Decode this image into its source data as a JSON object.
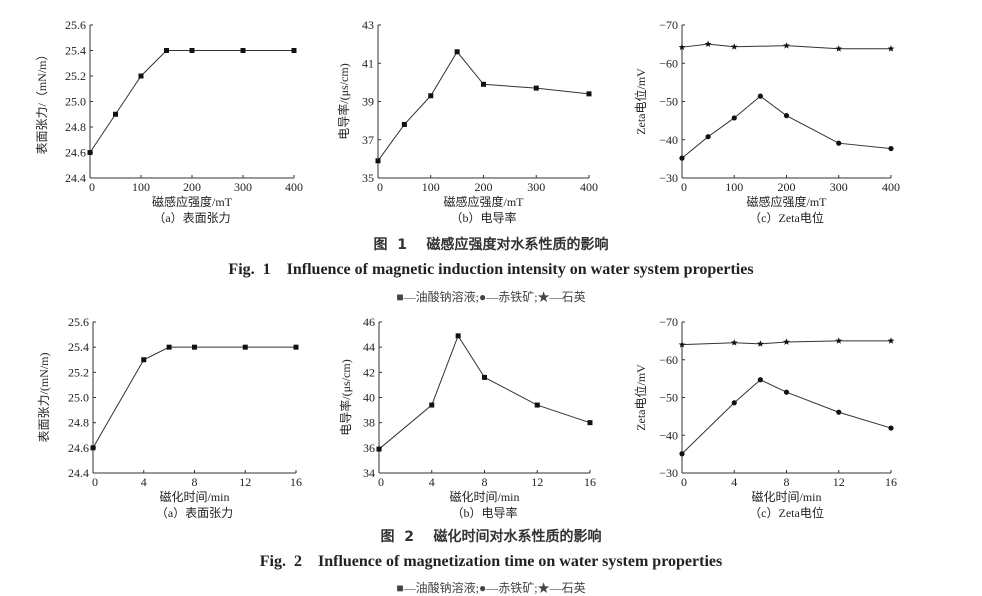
{
  "figures": [
    {
      "title_cn": "图  1    磁感应强度对水系性质的影响",
      "title_en": "Fig.  1    Influence of magnetic induction intensity on water system properties",
      "legend": "■—油酸钠溶液;●—赤铁矿;★—石英"
    },
    {
      "title_cn": "图  2    磁化时间对水系性质的影响",
      "title_en": "Fig.  2    Influence of magnetization time on water system properties",
      "legend": "■—油酸钠溶液;●—赤铁矿;★—石英"
    }
  ],
  "chart_data": [
    {
      "type": "line",
      "subcaption": "（a）表面张力",
      "xlabel": "磁感应强度/mT",
      "ylabel": "表面张力/（mN/m）",
      "xlim": [
        0,
        400
      ],
      "ylim": [
        24.4,
        25.6
      ],
      "xticks": [
        "0",
        "100",
        "200",
        "300",
        "400"
      ],
      "yticks": [
        "24.4",
        "24.6",
        "24.8",
        "25.0",
        "25.2",
        "25.4",
        "25.6"
      ],
      "x": [
        0,
        50,
        100,
        150,
        200,
        300,
        400
      ],
      "series": [
        {
          "name": "油酸钠溶液",
          "marker": "square",
          "values": [
            24.6,
            24.9,
            25.2,
            25.4,
            25.4,
            25.4,
            25.4
          ]
        }
      ]
    },
    {
      "type": "line",
      "subcaption": "（b）电导率",
      "xlabel": "磁感应强度/mT",
      "ylabel": "电导率/(μs/cm)",
      "xlim": [
        0,
        400
      ],
      "ylim": [
        35,
        43
      ],
      "xticks": [
        "0",
        "100",
        "200",
        "300",
        "400"
      ],
      "yticks": [
        "35",
        "37",
        "39",
        "41",
        "43"
      ],
      "x": [
        0,
        50,
        100,
        150,
        200,
        300,
        400
      ],
      "series": [
        {
          "name": "油酸钠溶液",
          "marker": "square",
          "values": [
            35.9,
            37.8,
            39.3,
            41.6,
            39.9,
            39.7,
            39.4
          ]
        }
      ]
    },
    {
      "type": "line",
      "subcaption": "（c）Zeta电位",
      "xlabel": "磁感应强度/mT",
      "ylabel": "Zeta电位/mV",
      "xlim": [
        0,
        400
      ],
      "ylim": [
        -30,
        -70
      ],
      "xticks": [
        "0",
        "100",
        "200",
        "300",
        "400"
      ],
      "yticks": [
        "-30",
        "-40",
        "-50",
        "-60",
        "-70"
      ],
      "x": [
        0,
        50,
        100,
        150,
        200,
        300,
        400
      ],
      "series": [
        {
          "name": "石英",
          "marker": "star",
          "values": [
            -64.2,
            -65.0,
            -64.3,
            null,
            -64.6,
            -63.8,
            -63.8
          ]
        },
        {
          "name": "赤铁矿",
          "marker": "circle",
          "values": [
            -35.2,
            -40.8,
            -45.7,
            -51.4,
            -46.3,
            -39.1,
            -37.7
          ]
        }
      ]
    },
    {
      "type": "line",
      "subcaption": "（a）表面张力",
      "xlabel": "磁化时间/min",
      "ylabel": "表面张力/(mN/m)",
      "xlim": [
        0,
        16
      ],
      "ylim": [
        24.4,
        25.6
      ],
      "xticks": [
        "0",
        "4",
        "8",
        "12",
        "16"
      ],
      "yticks": [
        "24.4",
        "24.6",
        "24.8",
        "25.0",
        "25.2",
        "25.4",
        "25.6"
      ],
      "x": [
        0,
        4,
        6,
        8,
        12,
        16
      ],
      "series": [
        {
          "name": "油酸钠溶液",
          "marker": "square",
          "values": [
            24.6,
            25.3,
            25.4,
            25.4,
            25.4,
            25.4
          ]
        }
      ]
    },
    {
      "type": "line",
      "subcaption": "（b）电导率",
      "xlabel": "磁化时间/min",
      "ylabel": "电导率/(μs/cm)",
      "xlim": [
        0,
        16
      ],
      "ylim": [
        34,
        46
      ],
      "xticks": [
        "0",
        "4",
        "8",
        "12",
        "16"
      ],
      "yticks": [
        "34",
        "36",
        "38",
        "40",
        "42",
        "44",
        "46"
      ],
      "x": [
        0,
        4,
        6,
        8,
        12,
        16
      ],
      "series": [
        {
          "name": "油酸钠溶液",
          "marker": "square",
          "values": [
            35.9,
            39.4,
            44.9,
            41.6,
            39.4,
            38.0
          ]
        }
      ]
    },
    {
      "type": "line",
      "subcaption": "（c）Zeta电位",
      "xlabel": "磁化时间/min",
      "ylabel": "Zeta电位/mV",
      "xlim": [
        0,
        16
      ],
      "ylim": [
        -30,
        -70
      ],
      "xticks": [
        "0",
        "4",
        "8",
        "12",
        "16"
      ],
      "yticks": [
        "-30",
        "-40",
        "-50",
        "-60",
        "-70"
      ],
      "x": [
        0,
        4,
        6,
        8,
        12,
        16
      ],
      "series": [
        {
          "name": "石英",
          "marker": "star",
          "values": [
            -64.0,
            -64.5,
            -64.2,
            -64.7,
            -65.0,
            -65.0
          ]
        },
        {
          "name": "赤铁矿",
          "marker": "circle",
          "values": [
            -35.1,
            -48.6,
            -54.7,
            -51.4,
            -46.1,
            -41.9
          ]
        }
      ]
    }
  ]
}
